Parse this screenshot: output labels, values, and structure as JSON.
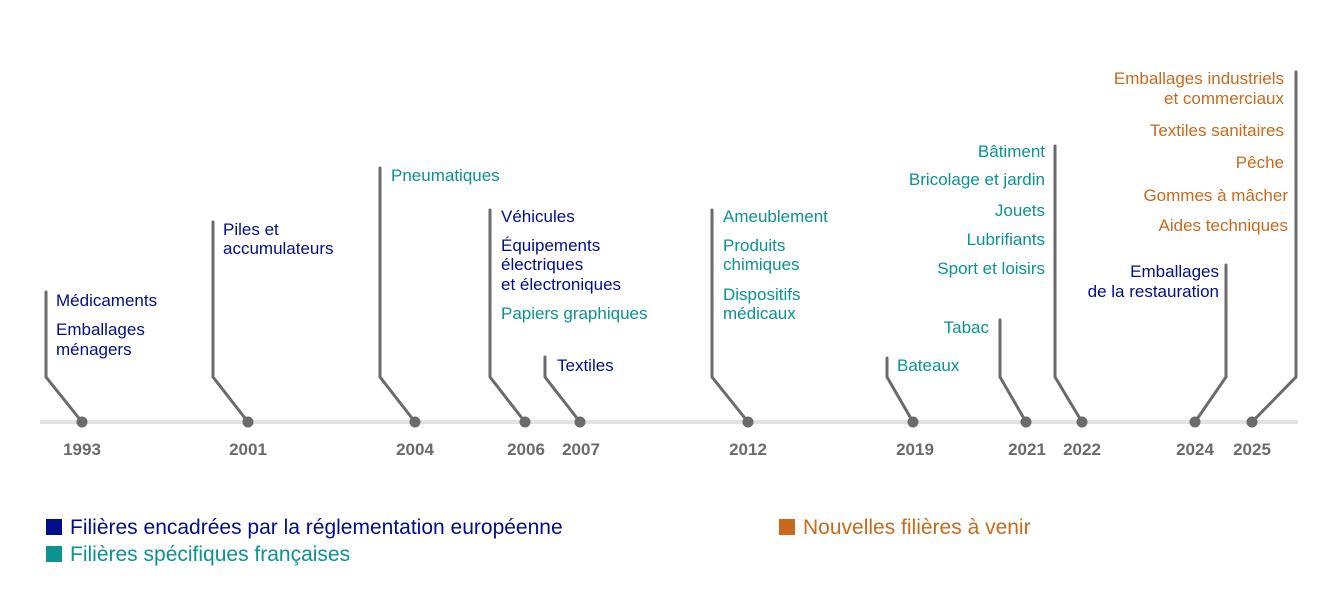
{
  "years": [
    "1993",
    "2001",
    "2004",
    "2006",
    "2007",
    "2012",
    "2019",
    "2021",
    "2022",
    "2024",
    "2025"
  ],
  "groups": {
    "g1993": [
      "Médicaments",
      "Emballages",
      "ménagers"
    ],
    "g2001": [
      "Piles et",
      "accumulateurs"
    ],
    "g2004": [
      "Pneumatiques"
    ],
    "g2006": [
      "Véhicules",
      "Équipements",
      "électriques",
      "et électroniques",
      "Papiers graphiques"
    ],
    "g2007": [
      "Textiles"
    ],
    "g2012": [
      "Ameublement",
      "Produits",
      "chimiques",
      "Dispositifs",
      "médicaux"
    ],
    "g2019": [
      "Bateaux"
    ],
    "g2021": [
      "Tabac"
    ],
    "g2022": [
      "Bâtiment",
      "Bricolage et jardin",
      "Jouets",
      "Lubrifiants",
      "Sport et loisirs"
    ],
    "g2024": [
      "Emballages",
      "de la restauration"
    ],
    "g2025": [
      "Emballages industriels",
      "et commerciaux",
      "Textiles sanitaires",
      "Pêche",
      "Gommes à mâcher",
      "Aides techniques"
    ]
  },
  "legend": {
    "eu": "Filières encadrées par la réglementation européenne",
    "fr": "Filières spécifiques françaises",
    "nv": "Nouvelles filières à venir"
  },
  "colors": {
    "eu": "#000e8a",
    "fr": "#0b9291",
    "nv": "#c9691c",
    "axis": "#e3e3e3",
    "marker": "#6b6b6b"
  }
}
